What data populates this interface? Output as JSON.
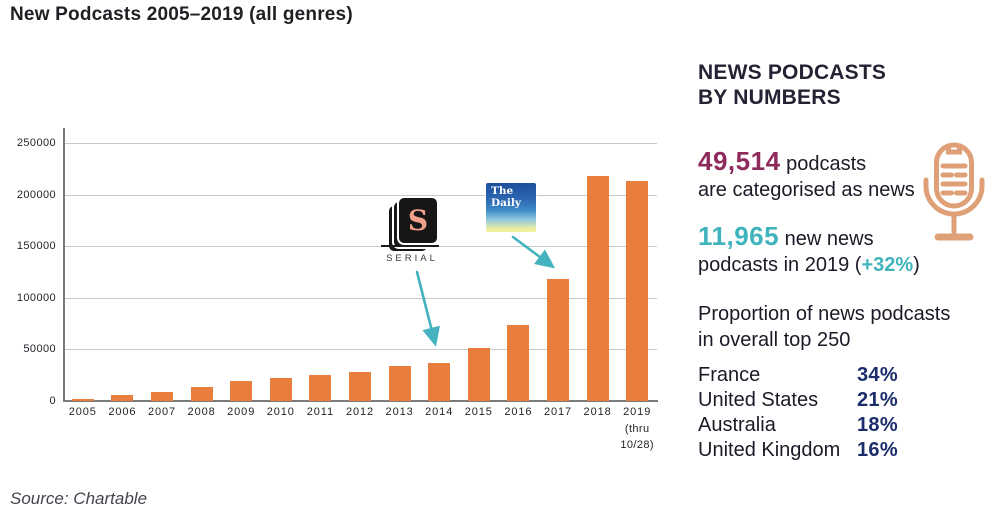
{
  "title": "New Podcasts 2005–2019 (all genres)",
  "source": "Source: Chartable",
  "colors": {
    "bar": "#E87D3E",
    "arrow": "#45B2BF",
    "grid": "#C9C9C9",
    "axis": "#7B7B7B",
    "stat1_number": "#8E2A5C",
    "stat2_number": "#3FB4BC",
    "percent": "#1B2D6B",
    "mic": "#DFA078"
  },
  "chart_data": {
    "type": "bar",
    "title": "New Podcasts 2005–2019 (all genres)",
    "categories": [
      "2005",
      "2006",
      "2007",
      "2008",
      "2009",
      "2010",
      "2011",
      "2012",
      "2013",
      "2014",
      "2015",
      "2016",
      "2017",
      "2018",
      "2019"
    ],
    "values": [
      2000,
      5500,
      9000,
      14000,
      19000,
      22000,
      25000,
      28500,
      34000,
      36500,
      51000,
      74000,
      118000,
      218000,
      213000
    ],
    "last_category_note": [
      "(thru",
      "10/28)"
    ],
    "xlabel": "",
    "ylabel": "",
    "ylim": [
      0,
      250000
    ],
    "yticks": [
      0,
      50000,
      100000,
      150000,
      200000,
      250000
    ],
    "grid": true,
    "legend": "none",
    "bar_color": "#E87D3E",
    "annotations": [
      {
        "label": "SERIAL",
        "points_to": "2014"
      },
      {
        "label": "The Daily",
        "points_to": "2017"
      }
    ]
  },
  "serial_logo": {
    "letter": "S",
    "label": "SERIAL"
  },
  "daily_logo": {
    "line1": "The",
    "line2": "Daily"
  },
  "sidebar": {
    "heading_line1": "NEWS PODCASTS",
    "heading_line2": "BY NUMBERS",
    "stat1": {
      "number": "49,514",
      "after": " podcasts",
      "line2": "are categorised as news"
    },
    "stat2": {
      "number": "11,965",
      "after": " new news",
      "line2_prefix": "podcasts in 2019 (",
      "highlight": "+32%",
      "line2_suffix": ")"
    },
    "proportion_line1": "Proportion of news podcasts",
    "proportion_line2": "in overall top 250",
    "countries": [
      {
        "name": "France",
        "value": "34%"
      },
      {
        "name": "United States",
        "value": "21%"
      },
      {
        "name": "Australia",
        "value": "18%"
      },
      {
        "name": "United Kingdom",
        "value": "16%"
      }
    ]
  }
}
